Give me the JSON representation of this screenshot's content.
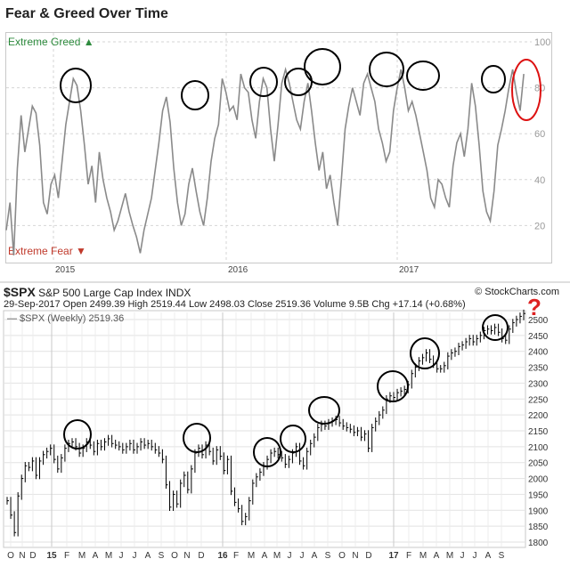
{
  "chart_data": [
    {
      "type": "line",
      "title": "Fear & Greed Over Time",
      "top_label": "Extreme Greed",
      "bottom_label": "Extreme Fear",
      "ylim": [
        0,
        100
      ],
      "y_ticks": [
        "100",
        "80",
        "60",
        "40",
        "20"
      ],
      "x_ticks": [
        "2015",
        "2016",
        "2017"
      ],
      "series": [
        {
          "color": "#8a8a8a",
          "values": [
            18,
            30,
            7,
            45,
            68,
            52,
            62,
            72,
            69,
            55,
            30,
            25,
            38,
            42,
            32,
            48,
            64,
            74,
            84,
            81,
            70,
            55,
            38,
            46,
            30,
            52,
            40,
            32,
            26,
            18,
            22,
            28,
            34,
            26,
            20,
            15,
            8,
            18,
            25,
            32,
            44,
            56,
            70,
            76,
            65,
            45,
            30,
            20,
            25,
            38,
            45,
            35,
            26,
            20,
            32,
            48,
            58,
            64,
            84,
            78,
            70,
            72,
            66,
            86,
            80,
            78,
            66,
            58,
            74,
            84,
            80,
            62,
            48,
            64,
            82,
            88,
            82,
            74,
            66,
            62,
            74,
            82,
            70,
            56,
            44,
            52,
            36,
            42,
            30,
            20,
            40,
            62,
            72,
            80,
            74,
            68,
            82,
            86,
            80,
            74,
            62,
            56,
            48,
            52,
            70,
            80,
            88,
            80,
            70,
            74,
            68,
            60,
            52,
            44,
            32,
            28,
            40,
            38,
            32,
            28,
            46,
            56,
            60,
            50,
            62,
            82,
            72,
            55,
            35,
            26,
            22,
            35,
            55,
            62,
            70,
            80,
            88,
            78,
            70,
            86
          ]
        }
      ],
      "annotations": "black circles mark greed peaks; red circle marks latest reading"
    },
    {
      "type": "line",
      "title": "$SPX",
      "subtitle": "S&P 500 Large Cap Index INDX",
      "info_line": "29-Sep-2017    Open 2499.39  High 2519.44  Low 2498.03  Close 2519.36  Volume 9.5B  Chg +17.14 (+0.68%)",
      "legend": "$SPX (Weekly) 2519.36",
      "credit": "© StockCharts.com",
      "ylim": [
        1800,
        2525
      ],
      "y_ticks": [
        "2500",
        "2450",
        "2400",
        "2350",
        "2300",
        "2250",
        "2200",
        "2150",
        "2100",
        "2050",
        "2000",
        "1950",
        "1900",
        "1850",
        "1800"
      ],
      "x_ticks": [
        "O",
        "N",
        "D",
        "15",
        "F",
        "M",
        "A",
        "M",
        "J",
        "J",
        "A",
        "S",
        "O",
        "N",
        "D",
        "16",
        "F",
        "M",
        "A",
        "M",
        "J",
        "J",
        "A",
        "S",
        "O",
        "N",
        "D",
        "17",
        "F",
        "M",
        "A",
        "M",
        "J",
        "J",
        "A",
        "S"
      ],
      "series": [
        {
          "color": "#000000",
          "values": [
            1930,
            1885,
            1830,
            1945,
            2000,
            2040,
            2035,
            2055,
            2010,
            2055,
            2075,
            2085,
            2095,
            2060,
            2030,
            2065,
            2095,
            2110,
            2115,
            2100,
            2080,
            2095,
            2115,
            2105,
            2085,
            2110,
            2100,
            2115,
            2125,
            2110,
            2105,
            2100,
            2090,
            2100,
            2110,
            2090,
            2100,
            2115,
            2105,
            2110,
            2100,
            2090,
            2080,
            2060,
            1980,
            1910,
            1950,
            1920,
            1985,
            2010,
            1965,
            2030,
            2080,
            2095,
            2075,
            2105,
            2085,
            2055,
            2090,
            2070,
            2025,
            2060,
            1960,
            1925,
            1905,
            1865,
            1880,
            1930,
            1985,
            2005,
            2020,
            2040,
            2060,
            2080,
            2085,
            2075,
            2065,
            2045,
            2060,
            2080,
            2100,
            2055,
            2040,
            2085,
            2110,
            2130,
            2160,
            2170,
            2165,
            2175,
            2180,
            2185,
            2175,
            2165,
            2160,
            2155,
            2145,
            2150,
            2130,
            2140,
            2095,
            2160,
            2180,
            2200,
            2215,
            2250,
            2260,
            2255,
            2270,
            2275,
            2280,
            2295,
            2330,
            2350,
            2370,
            2380,
            2395,
            2375,
            2360,
            2345,
            2345,
            2355,
            2385,
            2395,
            2400,
            2415,
            2420,
            2430,
            2440,
            2430,
            2440,
            2450,
            2465,
            2470,
            2465,
            2475,
            2460,
            2440,
            2435,
            2470,
            2490,
            2500,
            2510,
            2519
          ]
        }
      ],
      "corner_mark": "?"
    }
  ]
}
